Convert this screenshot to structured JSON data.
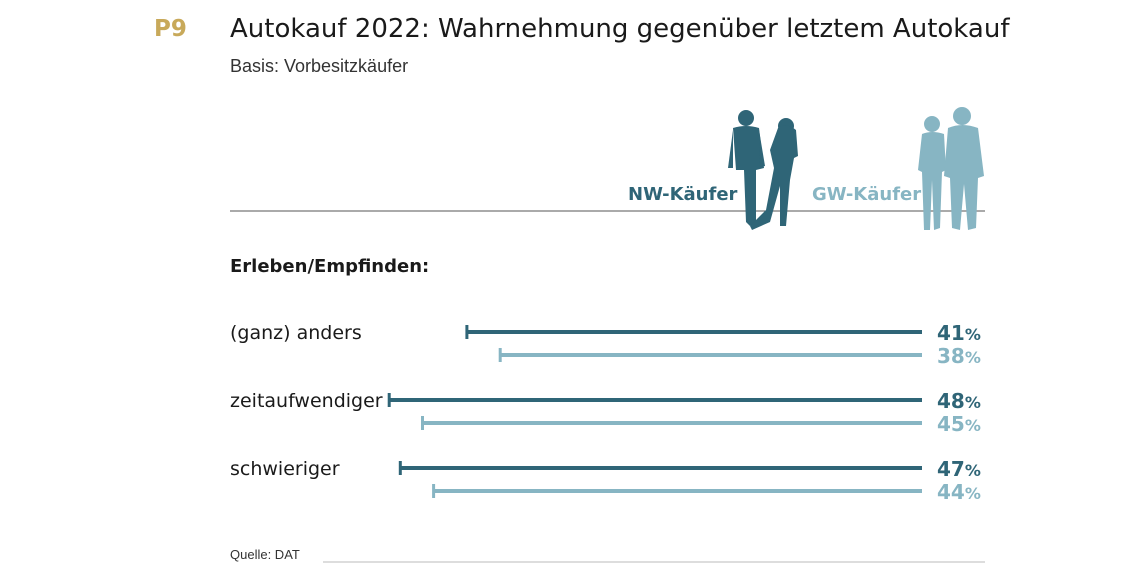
{
  "header": {
    "badge": "P9",
    "title": "Autokauf 2022: Wahrnehmung gegenüber letztem Autokauf",
    "subtitle": "Basis: Vorbesitzkäufer"
  },
  "section_heading": "Erleben/Empfinden:",
  "source": "Quelle: DAT",
  "colors": {
    "nw": "#2f6577",
    "gw": "#87b5c3",
    "badge": "#c8a95a"
  },
  "chart_data": {
    "type": "bar",
    "orientation": "horizontal",
    "categories": [
      "(ganz) anders",
      "zeitaufwendiger",
      "schwieriger"
    ],
    "series": [
      {
        "name": "NW-Käufer",
        "values": [
          41,
          48,
          47
        ],
        "color": "#2f6577"
      },
      {
        "name": "GW-Käufer",
        "values": [
          38,
          45,
          44
        ],
        "color": "#87b5c3"
      }
    ],
    "value_labels": {
      "NW-Käufer": [
        "41",
        "48",
        "47"
      ],
      "GW-Käufer": [
        "38",
        "45",
        "44"
      ]
    },
    "unit": "%",
    "title": "Autokauf 2022: Wahrnehmung gegenüber letztem Autokauf",
    "subtitle": "Basis: Vorbesitzkäufer",
    "xlim": [
      0,
      100
    ],
    "grid": false,
    "legend_position": "top-right"
  }
}
